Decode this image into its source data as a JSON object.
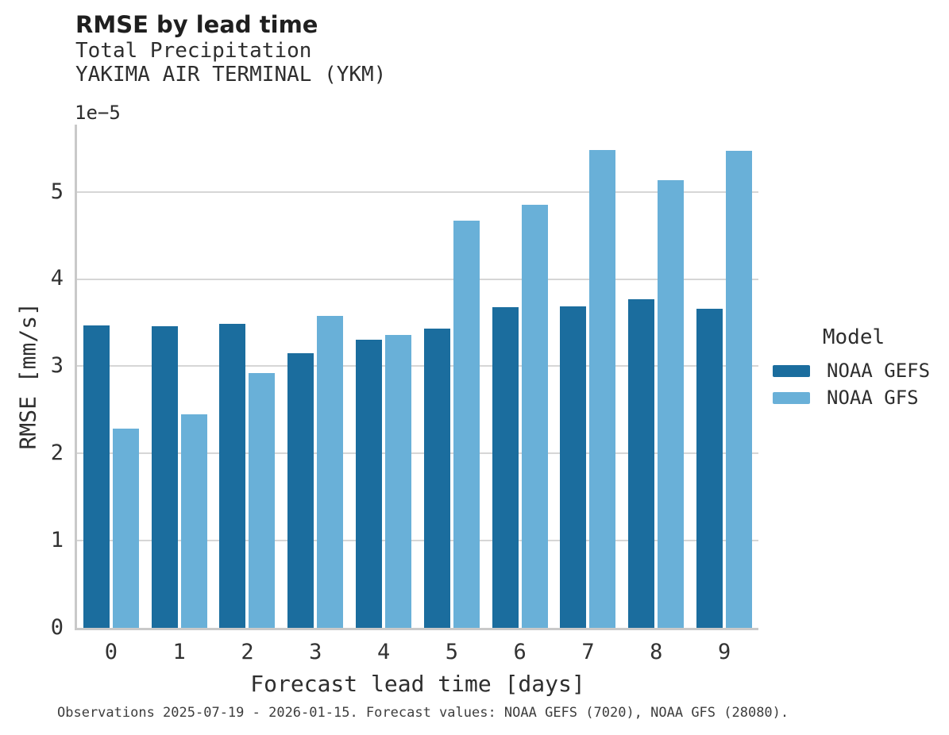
{
  "header": {
    "title": "RMSE by lead time",
    "subtitle_line1": "Total Precipitation",
    "subtitle_line2": "YAKIMA AIR TERMINAL (YKM)"
  },
  "axes": {
    "offset_text": "1e−5",
    "xlabel": "Forecast lead time [days]",
    "ylabel": "RMSE [mm/s]"
  },
  "legend": {
    "title": "Model"
  },
  "footer": {
    "text": "Observations 2025-07-19 - 2026-01-15. Forecast values: NOAA GEFS (7020), NOAA GFS (28080)."
  },
  "colors": {
    "gefs_dark_blue": "#1b6d9e",
    "gfs_light_blue": "#69b0d8",
    "gridline": "#d6d6d6",
    "spine": "#c9c9c9"
  },
  "chart_data": {
    "type": "bar",
    "title": "RMSE by lead time",
    "subtitle": [
      "Total Precipitation",
      "YAKIMA AIR TERMINAL (YKM)"
    ],
    "xlabel": "Forecast lead time [days]",
    "ylabel": "RMSE [mm/s]",
    "value_offset_factor": "1e-5",
    "categories": [
      "0",
      "1",
      "2",
      "3",
      "4",
      "5",
      "6",
      "7",
      "8",
      "9"
    ],
    "series": [
      {
        "name": "NOAA GEFS",
        "color": "#1b6d9e",
        "values": [
          3.47,
          3.46,
          3.49,
          3.15,
          3.3,
          3.43,
          3.68,
          3.69,
          3.77,
          3.66
        ]
      },
      {
        "name": "NOAA GFS",
        "color": "#69b0d8",
        "values": [
          2.28,
          2.45,
          2.92,
          3.58,
          3.36,
          4.67,
          4.85,
          5.48,
          5.13,
          5.47
        ]
      }
    ],
    "ylim": [
      0,
      5.77
    ],
    "yticks": [
      0,
      1,
      2,
      3,
      4,
      5
    ],
    "grid": "horizontal",
    "legend_title": "Model",
    "legend_position": "center-right"
  }
}
